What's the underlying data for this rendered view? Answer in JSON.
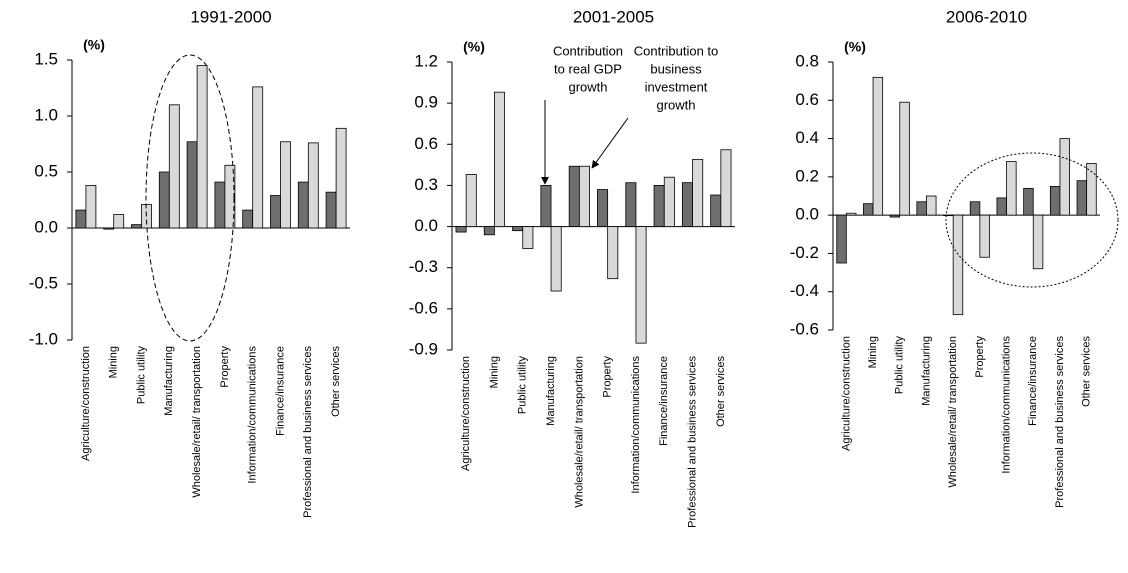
{
  "chart_data": [
    {
      "type": "bar",
      "title": "1991-2000",
      "y_unit": "(%)",
      "categories": [
        "Agriculture/construction",
        "Mining",
        "Public utility",
        "Manufacturing",
        "Wholesale/retail/ transportation",
        "Property",
        "Information/communications",
        "Finance/insurance",
        "Professional and business services",
        "Other services"
      ],
      "series": [
        {
          "color": "#6e6e6e",
          "values": [
            0.16,
            -0.01,
            0.03,
            0.5,
            0.77,
            0.41,
            0.16,
            0.29,
            0.41,
            0.32
          ]
        },
        {
          "color": "#d9d9d9",
          "values": [
            0.38,
            0.12,
            0.21,
            1.1,
            1.45,
            0.56,
            1.26,
            0.77,
            0.76,
            0.89
          ]
        }
      ],
      "ylim": [
        -1,
        1.5
      ],
      "yticks": [
        {
          "value": -1,
          "label": "-1.0"
        },
        -0.5,
        {
          "value": 0,
          "label": "0.0"
        },
        0.5,
        {
          "value": 1,
          "label": "1.0"
        },
        1.5
      ]
    },
    {
      "type": "bar",
      "title": "2001-2005",
      "y_unit": "(%)",
      "categories": [
        "Agriculture/construction",
        "Mining",
        "Public utility",
        "Manufacturing",
        "Wholesale/retail/ transportation",
        "Property",
        "Information/communications",
        "Finance/insurance",
        "Professional and business services",
        "Other services"
      ],
      "series": [
        {
          "color": "#6e6e6e",
          "values": [
            -0.04,
            -0.06,
            -0.03,
            0.3,
            0.44,
            0.27,
            0.32,
            0.3,
            0.32,
            0.23
          ]
        },
        {
          "color": "#d9d9d9",
          "values": [
            0.38,
            0.98,
            -0.16,
            -0.47,
            0.44,
            -0.38,
            -0.85,
            0.36,
            0.49,
            0.56
          ]
        }
      ],
      "ylim": [
        -0.9,
        1.2
      ],
      "yticks": [
        -0.9,
        -0.6,
        -0.3,
        {
          "value": 0,
          "label": "0.0"
        },
        0.3,
        0.6,
        0.9,
        1.2
      ],
      "annotations": [
        {
          "lines": [
            "Contribution",
            "to real GDP",
            "growth"
          ]
        },
        {
          "lines": [
            "Contribution to",
            "business",
            "investment",
            "growth"
          ]
        }
      ]
    },
    {
      "type": "bar",
      "title": "2006-2010",
      "y_unit": "(%)",
      "categories": [
        "Agriculture/construction",
        "Mining",
        "Public utility",
        "Manufacturing",
        "Wholesale/retail/ transportation",
        "Property",
        "Information/communications",
        "Finance/insurance",
        "Professional and business services",
        "Other services"
      ],
      "series": [
        {
          "color": "#6e6e6e",
          "values": [
            -0.25,
            0.06,
            -0.01,
            0.07,
            0.0,
            0.07,
            0.09,
            0.14,
            0.15,
            0.18
          ]
        },
        {
          "color": "#d9d9d9",
          "values": [
            0.01,
            0.72,
            0.59,
            0.1,
            -0.52,
            -0.22,
            0.28,
            -0.28,
            0.4,
            0.27
          ]
        }
      ],
      "ylim": [
        -0.6,
        0.8
      ],
      "yticks": [
        -0.6,
        -0.4,
        -0.2,
        {
          "value": 0,
          "label": "0.0"
        },
        0.2,
        0.4,
        0.6,
        0.8
      ]
    }
  ]
}
